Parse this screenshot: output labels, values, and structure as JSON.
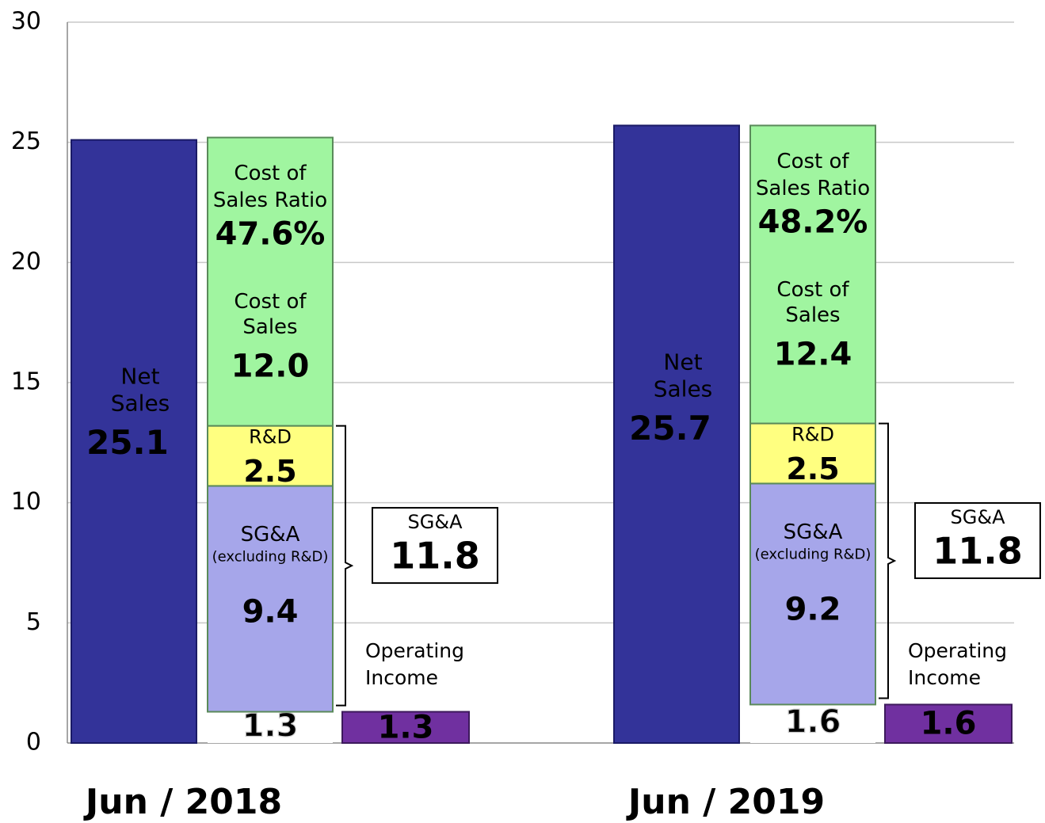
{
  "chart_data": {
    "type": "stacked_bar",
    "categories": [
      "Jun / 2018",
      "Jun / 2019"
    ],
    "ylim": [
      0,
      30
    ],
    "yticks": [
      0,
      5,
      10,
      15,
      20,
      25,
      30
    ],
    "grid": true,
    "net_sales": {
      "label_lines": [
        "Net",
        "Sales"
      ],
      "color": "#333399",
      "values": [
        25.1,
        25.7
      ]
    },
    "operating_income": {
      "label_lines": [
        "Operating",
        "Income"
      ],
      "color": "#7030a0",
      "values": [
        1.3,
        1.6
      ]
    },
    "stack": [
      {
        "label_lines": [
          "SG&A",
          "(excluding R&D)"
        ],
        "color": "#a6a6ea",
        "values": [
          9.4,
          9.2
        ]
      },
      {
        "label_lines": [
          "R&D"
        ],
        "color": "#ffff80",
        "values": [
          2.5,
          2.5
        ]
      },
      {
        "label_lines": [
          "Cost of",
          "Sales"
        ],
        "color": "#a0f5a0",
        "values": [
          12.0,
          12.4
        ],
        "value_labels": [
          "12.0",
          "12.4"
        ]
      }
    ],
    "cost_of_sales_ratio": {
      "label_lines": [
        "Cost of",
        "Sales Ratio"
      ],
      "values": [
        47.6,
        48.2
      ],
      "value_labels": [
        "47.6%",
        "48.2%"
      ]
    },
    "sga_total": {
      "name": "SG&A",
      "values": [
        11.8,
        11.8
      ]
    }
  }
}
